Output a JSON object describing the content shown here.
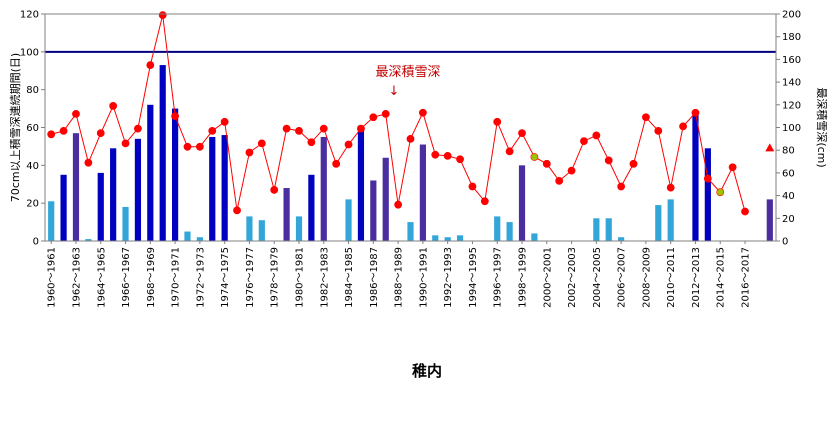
{
  "chart_data": {
    "type": "bar",
    "title": "稚内",
    "ylabel_left": "70cm以上積雪深連続期間(日)",
    "ylabel_right": "最深積雪深(cm)",
    "ylim_left": [
      0,
      120
    ],
    "ylim_right": [
      0,
      200
    ],
    "yticks_left": [
      "0",
      "20",
      "40",
      "60",
      "80",
      "100",
      "120"
    ],
    "yticks_right": [
      "0",
      "20",
      "40",
      "60",
      "80",
      "100",
      "120",
      "140",
      "160",
      "180",
      "200"
    ],
    "reference_line": {
      "axis": "left",
      "value": 100,
      "color": "#000080"
    },
    "annotation": {
      "text": "最深積雪深",
      "arrow": "↓",
      "color": "#c00000"
    },
    "x_tick_labels": [
      "1960～1961",
      "1962～1963",
      "1964～1965",
      "1966～1967",
      "1968～1969",
      "1970～1971",
      "1972～1973",
      "1974～1975",
      "1976～1977",
      "1978～1979",
      "1980～1981",
      "1982～1983",
      "1984～1985",
      "1986～1987",
      "1988～1989",
      "1990～1991",
      "1992～1993",
      "1994～1995",
      "1996～1997",
      "1998～1999",
      "2000～2001",
      "2002～2003",
      "2004～2005",
      "2006～2007",
      "2008～2009",
      "2010～2011",
      "2012～2013",
      "2014～2015",
      "2016～2017"
    ],
    "seasons_start": 1960,
    "series": [
      {
        "name": "70cm以上積雪深連続期間",
        "type": "bar",
        "axis": "left",
        "values": [
          21,
          35,
          57,
          1,
          36,
          49,
          18,
          54,
          72,
          93,
          70,
          5,
          2,
          55,
          56,
          0,
          13,
          11,
          0,
          28,
          13,
          35,
          55,
          0,
          22,
          61,
          32,
          44,
          0,
          10,
          51,
          3,
          2,
          3,
          0,
          0,
          13,
          10,
          40,
          4,
          0,
          0,
          0,
          0,
          12,
          12,
          2,
          0,
          0,
          19,
          22,
          0,
          67,
          49,
          0,
          0,
          0,
          0,
          22
        ],
        "colors": [
          "#33a6d9",
          "#0000c0",
          "#4a2ea0"
        ],
        "color_index": [
          0,
          1,
          2,
          0,
          1,
          1,
          0,
          1,
          1,
          1,
          1,
          0,
          0,
          1,
          1,
          0,
          0,
          0,
          0,
          2,
          0,
          1,
          2,
          0,
          0,
          1,
          2,
          2,
          0,
          0,
          2,
          0,
          0,
          0,
          0,
          0,
          0,
          0,
          2,
          0,
          0,
          0,
          0,
          0,
          0,
          0,
          0,
          0,
          0,
          0,
          0,
          0,
          1,
          1,
          0,
          0,
          0,
          0,
          2
        ]
      },
      {
        "name": "最深積雪深",
        "type": "line",
        "axis": "right",
        "color": "#ff0000",
        "values": [
          94,
          97,
          112,
          69,
          95,
          119,
          86,
          99,
          155,
          199,
          110,
          83,
          83,
          97,
          105,
          27,
          78,
          86,
          45,
          99,
          97,
          87,
          99,
          68,
          85,
          99,
          109,
          112,
          32,
          90,
          113,
          76,
          75,
          72,
          48,
          35,
          105,
          79,
          95,
          74,
          68,
          53,
          62,
          88,
          93,
          71,
          48,
          68,
          109,
          97,
          47,
          101,
          113,
          55,
          43,
          65,
          26,
          null,
          82
        ],
        "marker_colors": [
          "#ff0000",
          "#ff0000",
          "#ff0000",
          "#ff0000",
          "#ff0000",
          "#ff0000",
          "#ff0000",
          "#ff0000",
          "#ff0000",
          "#ff0000",
          "#ff0000",
          "#ff0000",
          "#ff0000",
          "#ff0000",
          "#ff0000",
          "#ff0000",
          "#ff0000",
          "#ff0000",
          "#ff0000",
          "#ff0000",
          "#ff0000",
          "#ff0000",
          "#ff0000",
          "#ff0000",
          "#ff0000",
          "#ff0000",
          "#ff0000",
          "#ff0000",
          "#ff0000",
          "#ff0000",
          "#ff0000",
          "#ff0000",
          "#ff0000",
          "#ff0000",
          "#ff0000",
          "#ff0000",
          "#ff0000",
          "#ff0000",
          "#ff0000",
          "#a0c000",
          "#ff0000",
          "#ff0000",
          "#ff0000",
          "#ff0000",
          "#ff0000",
          "#ff0000",
          "#ff0000",
          "#ff0000",
          "#ff0000",
          "#ff0000",
          "#ff0000",
          "#ff0000",
          "#ff0000",
          "#ff0000",
          "#a0c000",
          "#ff0000",
          "#ff0000",
          "#ff0000",
          "#ff0000"
        ],
        "last_marker_shape": "triangle"
      }
    ],
    "grid": false,
    "legend": "none"
  }
}
